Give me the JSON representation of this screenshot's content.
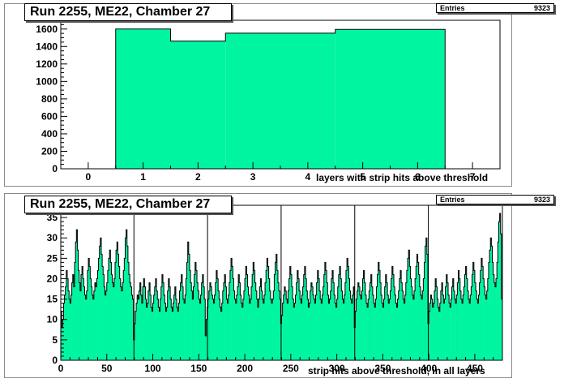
{
  "colors": {
    "fill": "#00f5a0",
    "frame": "#000000"
  },
  "chart_data": [
    {
      "type": "bar",
      "title": "Run 2255, ME22, Chamber 27",
      "xlabel": "layers with strip hits above threshold",
      "stats": {
        "label": "Entries",
        "value": "9323"
      },
      "xlim": [
        -0.5,
        7.5
      ],
      "ylim": [
        0,
        1700
      ],
      "xticks": [
        0,
        1,
        2,
        3,
        4,
        5,
        6,
        7
      ],
      "yticks": [
        0,
        200,
        400,
        600,
        800,
        1000,
        1200,
        1400,
        1600
      ],
      "categories": [
        1,
        2,
        3,
        4,
        5,
        6
      ],
      "values": [
        1600,
        1462,
        1552,
        1552,
        1595,
        1595
      ]
    },
    {
      "type": "bar",
      "title": "Run 2255, ME22, Chamber 27",
      "xlabel": "strip hits above threshold, in all layers",
      "stats": {
        "label": "Entries",
        "value": "9323"
      },
      "xlim": [
        0,
        480
      ],
      "ylim": [
        0,
        38
      ],
      "xticks": [
        0,
        50,
        100,
        150,
        200,
        250,
        300,
        350,
        400,
        450
      ],
      "yticks": [
        0,
        5,
        10,
        15,
        20,
        25,
        30,
        35
      ],
      "bin_width": 1,
      "values": [
        12,
        8,
        10,
        14,
        16,
        18,
        22,
        20,
        17,
        15,
        14,
        16,
        19,
        21,
        18,
        24,
        29,
        32,
        27,
        22,
        19,
        17,
        21,
        23,
        20,
        18,
        16,
        15,
        17,
        22,
        25,
        23,
        20,
        18,
        16,
        15,
        17,
        19,
        18,
        20,
        22,
        25,
        28,
        30,
        26,
        23,
        21,
        18,
        16,
        17,
        19,
        22,
        25,
        27,
        24,
        21,
        19,
        18,
        20,
        24,
        27,
        29,
        26,
        23,
        20,
        18,
        17,
        19,
        22,
        25,
        30,
        32,
        28,
        24,
        21,
        19,
        18,
        16,
        15,
        5,
        9,
        12,
        14,
        16,
        15,
        17,
        19,
        16,
        14,
        18,
        20,
        18,
        15,
        13,
        14,
        17,
        19,
        16,
        13,
        12,
        14,
        16,
        18,
        20,
        17,
        15,
        13,
        12,
        15,
        18,
        21,
        19,
        16,
        14,
        12,
        13,
        17,
        20,
        18,
        15,
        13,
        12,
        14,
        16,
        18,
        15,
        13,
        12,
        14,
        17,
        19,
        21,
        18,
        15,
        14,
        16,
        20,
        24,
        29,
        26,
        22,
        19,
        17,
        15,
        18,
        21,
        24,
        22,
        19,
        17,
        15,
        14,
        16,
        19,
        21,
        18,
        15,
        6,
        10,
        13,
        15,
        17,
        19,
        18,
        16,
        15,
        14,
        16,
        19,
        22,
        20,
        17,
        15,
        13,
        12,
        14,
        17,
        19,
        21,
        18,
        15,
        14,
        16,
        19,
        22,
        25,
        23,
        20,
        17,
        15,
        14,
        16,
        18,
        21,
        19,
        16,
        14,
        13,
        15,
        17,
        20,
        23,
        21,
        18,
        16,
        14,
        15,
        18,
        21,
        24,
        22,
        19,
        17,
        15,
        13,
        15,
        18,
        20,
        17,
        15,
        14,
        16,
        19,
        22,
        25,
        23,
        20,
        17,
        15,
        14,
        15,
        17,
        21,
        24,
        26,
        22,
        19,
        17,
        15,
        9,
        11,
        14,
        16,
        18,
        17,
        15,
        14,
        17,
        20,
        23,
        21,
        18,
        15,
        13,
        14,
        16,
        19,
        22,
        20,
        17,
        15,
        14,
        16,
        18,
        21,
        23,
        20,
        17,
        15,
        13,
        14,
        17,
        19,
        18,
        16,
        15,
        14,
        16,
        19,
        22,
        20,
        17,
        15,
        14,
        16,
        18,
        21,
        24,
        22,
        19,
        16,
        14,
        15,
        17,
        20,
        22,
        19,
        16,
        14,
        13,
        15,
        18,
        21,
        23,
        20,
        17,
        15,
        14,
        16,
        19,
        22,
        25,
        23,
        20,
        17,
        15,
        14,
        16,
        18,
        8,
        12,
        15,
        17,
        19,
        18,
        16,
        15,
        17,
        20,
        22,
        19,
        16,
        14,
        13,
        15,
        17,
        19,
        21,
        18,
        16,
        14,
        13,
        15,
        18,
        21,
        24,
        22,
        19,
        16,
        14,
        13,
        15,
        18,
        21,
        19,
        16,
        14,
        15,
        17,
        20,
        23,
        21,
        18,
        16,
        14,
        13,
        15,
        17,
        20,
        22,
        19,
        17,
        15,
        14,
        16,
        19,
        22,
        25,
        27,
        23,
        20,
        18,
        16,
        15,
        17,
        20,
        23,
        26,
        24,
        21,
        18,
        16,
        15,
        17,
        20,
        24,
        28,
        30,
        26,
        9,
        12,
        14,
        16,
        15,
        13,
        14,
        17,
        20,
        18,
        15,
        13,
        12,
        14,
        17,
        19,
        16,
        14,
        15,
        18,
        21,
        19,
        16,
        14,
        13,
        15,
        18,
        20,
        17,
        15,
        14,
        16,
        19,
        22,
        20,
        17,
        15,
        14,
        16,
        18,
        21,
        23,
        20,
        17,
        15,
        14,
        16,
        18,
        21,
        24,
        22,
        19,
        17,
        15,
        14,
        16,
        19,
        22,
        25,
        23,
        20,
        18,
        16,
        15,
        17,
        20,
        24,
        27,
        30,
        28,
        24,
        21,
        19,
        18,
        20,
        24,
        29,
        34,
        36,
        31,
        15
      ],
      "vlines": [
        79,
        159,
        239,
        319,
        399
      ],
      "vline_top": 38
    }
  ]
}
